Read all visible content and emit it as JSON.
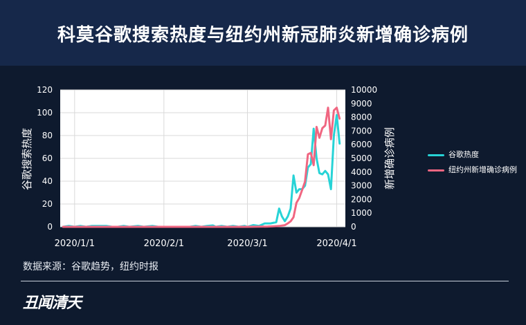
{
  "header": {
    "title": "科莫谷歌搜索热度与纽约州新冠肺炎新增确诊病例"
  },
  "chart_data": {
    "type": "line",
    "x_tick_labels": [
      "2020/1/1",
      "2020/2/1",
      "2020/3/1",
      "2020/4/1"
    ],
    "x_ticks": [
      "2020-01-01",
      "2020-02-01",
      "2020-03-01",
      "2020-04-01"
    ],
    "xlim": [
      "2019-12-27",
      "2020-04-04"
    ],
    "left_axis": {
      "label": "谷歌搜索热度",
      "ylim": [
        0,
        120
      ],
      "ticks": [
        0,
        20,
        40,
        60,
        80,
        100,
        120
      ]
    },
    "right_axis": {
      "label": "新增确诊病例",
      "ylim": [
        0,
        10000
      ],
      "ticks": [
        0,
        1000,
        2000,
        3000,
        4000,
        5000,
        6000,
        7000,
        8000,
        9000,
        10000
      ]
    },
    "grid": true,
    "series": [
      {
        "name": "谷歌热度",
        "axis": "left",
        "color": "#27d3d6",
        "points": [
          [
            "2019-12-28",
            0
          ],
          [
            "2019-12-30",
            0.8
          ],
          [
            "2020-01-01",
            0
          ],
          [
            "2020-01-03",
            0.8
          ],
          [
            "2020-01-05",
            0
          ],
          [
            "2020-01-07",
            0.8
          ],
          [
            "2020-01-09",
            0.8
          ],
          [
            "2020-01-12",
            0.8
          ],
          [
            "2020-01-14",
            0
          ],
          [
            "2020-01-16",
            0
          ],
          [
            "2020-01-18",
            0.8
          ],
          [
            "2020-01-20",
            0
          ],
          [
            "2020-01-23",
            0.8
          ],
          [
            "2020-01-25",
            0
          ],
          [
            "2020-01-28",
            0.8
          ],
          [
            "2020-01-30",
            0
          ],
          [
            "2020-02-01",
            0
          ],
          [
            "2020-02-04",
            0
          ],
          [
            "2020-02-07",
            0
          ],
          [
            "2020-02-10",
            0
          ],
          [
            "2020-02-12",
            0.8
          ],
          [
            "2020-02-14",
            0
          ],
          [
            "2020-02-16",
            0.8
          ],
          [
            "2020-02-18",
            1.2
          ],
          [
            "2020-02-19",
            0
          ],
          [
            "2020-02-21",
            0.8
          ],
          [
            "2020-02-23",
            0
          ],
          [
            "2020-02-25",
            0.8
          ],
          [
            "2020-02-27",
            0
          ],
          [
            "2020-02-29",
            0.8
          ],
          [
            "2020-03-01",
            0
          ],
          [
            "2020-03-03",
            1.5
          ],
          [
            "2020-03-05",
            0.8
          ],
          [
            "2020-03-07",
            3
          ],
          [
            "2020-03-09",
            3
          ],
          [
            "2020-03-11",
            4
          ],
          [
            "2020-03-12",
            16
          ],
          [
            "2020-03-13",
            9
          ],
          [
            "2020-03-14",
            5
          ],
          [
            "2020-03-15",
            9
          ],
          [
            "2020-03-16",
            16
          ],
          [
            "2020-03-17",
            45
          ],
          [
            "2020-03-18",
            30
          ],
          [
            "2020-03-19",
            33
          ],
          [
            "2020-03-20",
            33
          ],
          [
            "2020-03-21",
            36
          ],
          [
            "2020-03-22",
            52
          ],
          [
            "2020-03-23",
            55
          ],
          [
            "2020-03-24",
            86
          ],
          [
            "2020-03-25",
            60
          ],
          [
            "2020-03-26",
            47
          ],
          [
            "2020-03-27",
            46
          ],
          [
            "2020-03-28",
            49
          ],
          [
            "2020-03-29",
            46
          ],
          [
            "2020-03-30",
            33
          ],
          [
            "2020-03-31",
            80
          ],
          [
            "2020-04-01",
            98
          ],
          [
            "2020-04-02",
            73
          ]
        ]
      },
      {
        "name": "纽约州新增确诊病例",
        "axis": "right",
        "color": "#f06681",
        "points": [
          [
            "2019-12-28",
            0
          ],
          [
            "2020-01-15",
            0
          ],
          [
            "2020-02-01",
            0
          ],
          [
            "2020-02-15",
            0
          ],
          [
            "2020-03-01",
            0
          ],
          [
            "2020-03-05",
            10
          ],
          [
            "2020-03-08",
            20
          ],
          [
            "2020-03-10",
            40
          ],
          [
            "2020-03-12",
            60
          ],
          [
            "2020-03-14",
            120
          ],
          [
            "2020-03-15",
            250
          ],
          [
            "2020-03-16",
            400
          ],
          [
            "2020-03-17",
            700
          ],
          [
            "2020-03-18",
            1750
          ],
          [
            "2020-03-19",
            2100
          ],
          [
            "2020-03-20",
            2700
          ],
          [
            "2020-03-21",
            3300
          ],
          [
            "2020-03-22",
            5300
          ],
          [
            "2020-03-23",
            5400
          ],
          [
            "2020-03-24",
            4500
          ],
          [
            "2020-03-25",
            7300
          ],
          [
            "2020-03-26",
            6500
          ],
          [
            "2020-03-27",
            7200
          ],
          [
            "2020-03-28",
            7400
          ],
          [
            "2020-03-29",
            8700
          ],
          [
            "2020-03-30",
            6400
          ],
          [
            "2020-03-31",
            8500
          ],
          [
            "2020-04-01",
            8700
          ],
          [
            "2020-04-02",
            7900
          ]
        ]
      }
    ]
  },
  "source_note": "数据来源：谷歌趋势，纽约时报",
  "logo_text": "丑闻清天"
}
